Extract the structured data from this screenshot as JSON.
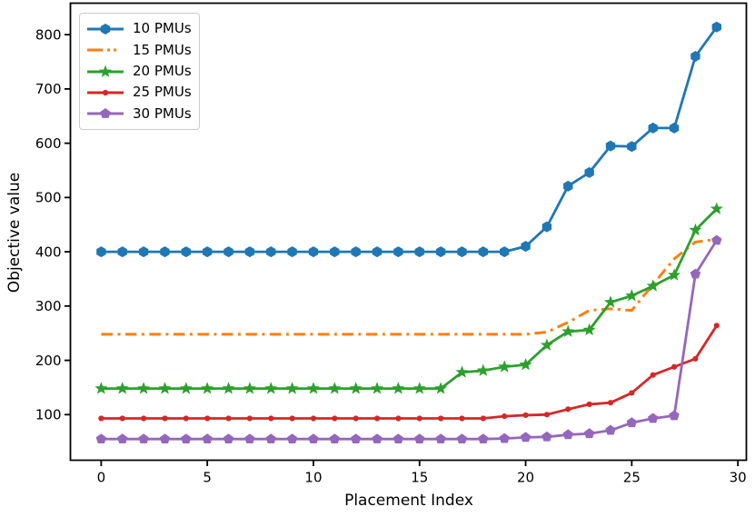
{
  "figure": {
    "background": "#ffffff",
    "axis_color": "#000000",
    "tick_label_color": "#000000"
  },
  "chart_data": {
    "type": "line",
    "title": "",
    "xlabel": "Placement Index",
    "ylabel": "Objective value",
    "grid": false,
    "xlim": [
      -1.45,
      30.4
    ],
    "ylim": [
      16,
      858
    ],
    "x_ticks": [
      0,
      5,
      10,
      15,
      20,
      25,
      30
    ],
    "y_ticks": [
      100,
      200,
      300,
      400,
      500,
      600,
      700,
      800
    ],
    "legend": {
      "position": "upper-left",
      "border_color": "#cccccc",
      "background": "#ffffff"
    },
    "x": [
      0,
      1,
      2,
      3,
      4,
      5,
      6,
      7,
      8,
      9,
      10,
      11,
      12,
      13,
      14,
      15,
      16,
      17,
      18,
      19,
      20,
      21,
      22,
      23,
      24,
      25,
      26,
      27,
      28,
      29
    ],
    "series": [
      {
        "name": "10 PMUs",
        "color": "#1f77b4",
        "marker": "hexagon",
        "linestyle": "solid",
        "values": [
          400,
          400,
          400,
          400,
          400,
          400,
          400,
          400,
          400,
          400,
          400,
          400,
          400,
          400,
          400,
          400,
          400,
          400,
          400,
          400,
          410,
          446,
          521,
          546,
          595,
          594,
          628,
          628,
          760,
          814
        ]
      },
      {
        "name": "15 PMUs",
        "color": "#ff7f0e",
        "marker": "none",
        "linestyle": "dashdot",
        "values": [
          248,
          248,
          248,
          248,
          248,
          248,
          248,
          248,
          248,
          248,
          248,
          248,
          248,
          248,
          248,
          248,
          248,
          248,
          248,
          248,
          248,
          252,
          270,
          292,
          295,
          292,
          340,
          387,
          418,
          423
        ]
      },
      {
        "name": "20 PMUs",
        "color": "#2ca02c",
        "marker": "star",
        "linestyle": "solid",
        "values": [
          148,
          148,
          148,
          148,
          148,
          148,
          148,
          148,
          148,
          148,
          148,
          148,
          148,
          148,
          148,
          148,
          148,
          178,
          181,
          188,
          192,
          228,
          253,
          256,
          307,
          319,
          337,
          357,
          440,
          479
        ]
      },
      {
        "name": "25 PMUs",
        "color": "#d62728",
        "marker": "dot",
        "linestyle": "solid",
        "values": [
          93,
          93,
          93,
          93,
          93,
          93,
          93,
          93,
          93,
          93,
          93,
          93,
          93,
          93,
          93,
          93,
          93,
          93,
          93,
          97,
          99,
          100,
          110,
          119,
          122,
          140,
          173,
          188,
          203,
          264
        ]
      },
      {
        "name": "30 PMUs",
        "color": "#9467bd",
        "marker": "pentagon",
        "linestyle": "solid",
        "values": [
          55,
          55,
          55,
          55,
          55,
          55,
          55,
          55,
          55,
          55,
          55,
          55,
          55,
          55,
          55,
          55,
          55,
          55,
          55,
          56,
          58,
          59,
          63,
          65,
          71,
          85,
          93,
          98,
          359,
          421
        ]
      }
    ]
  }
}
